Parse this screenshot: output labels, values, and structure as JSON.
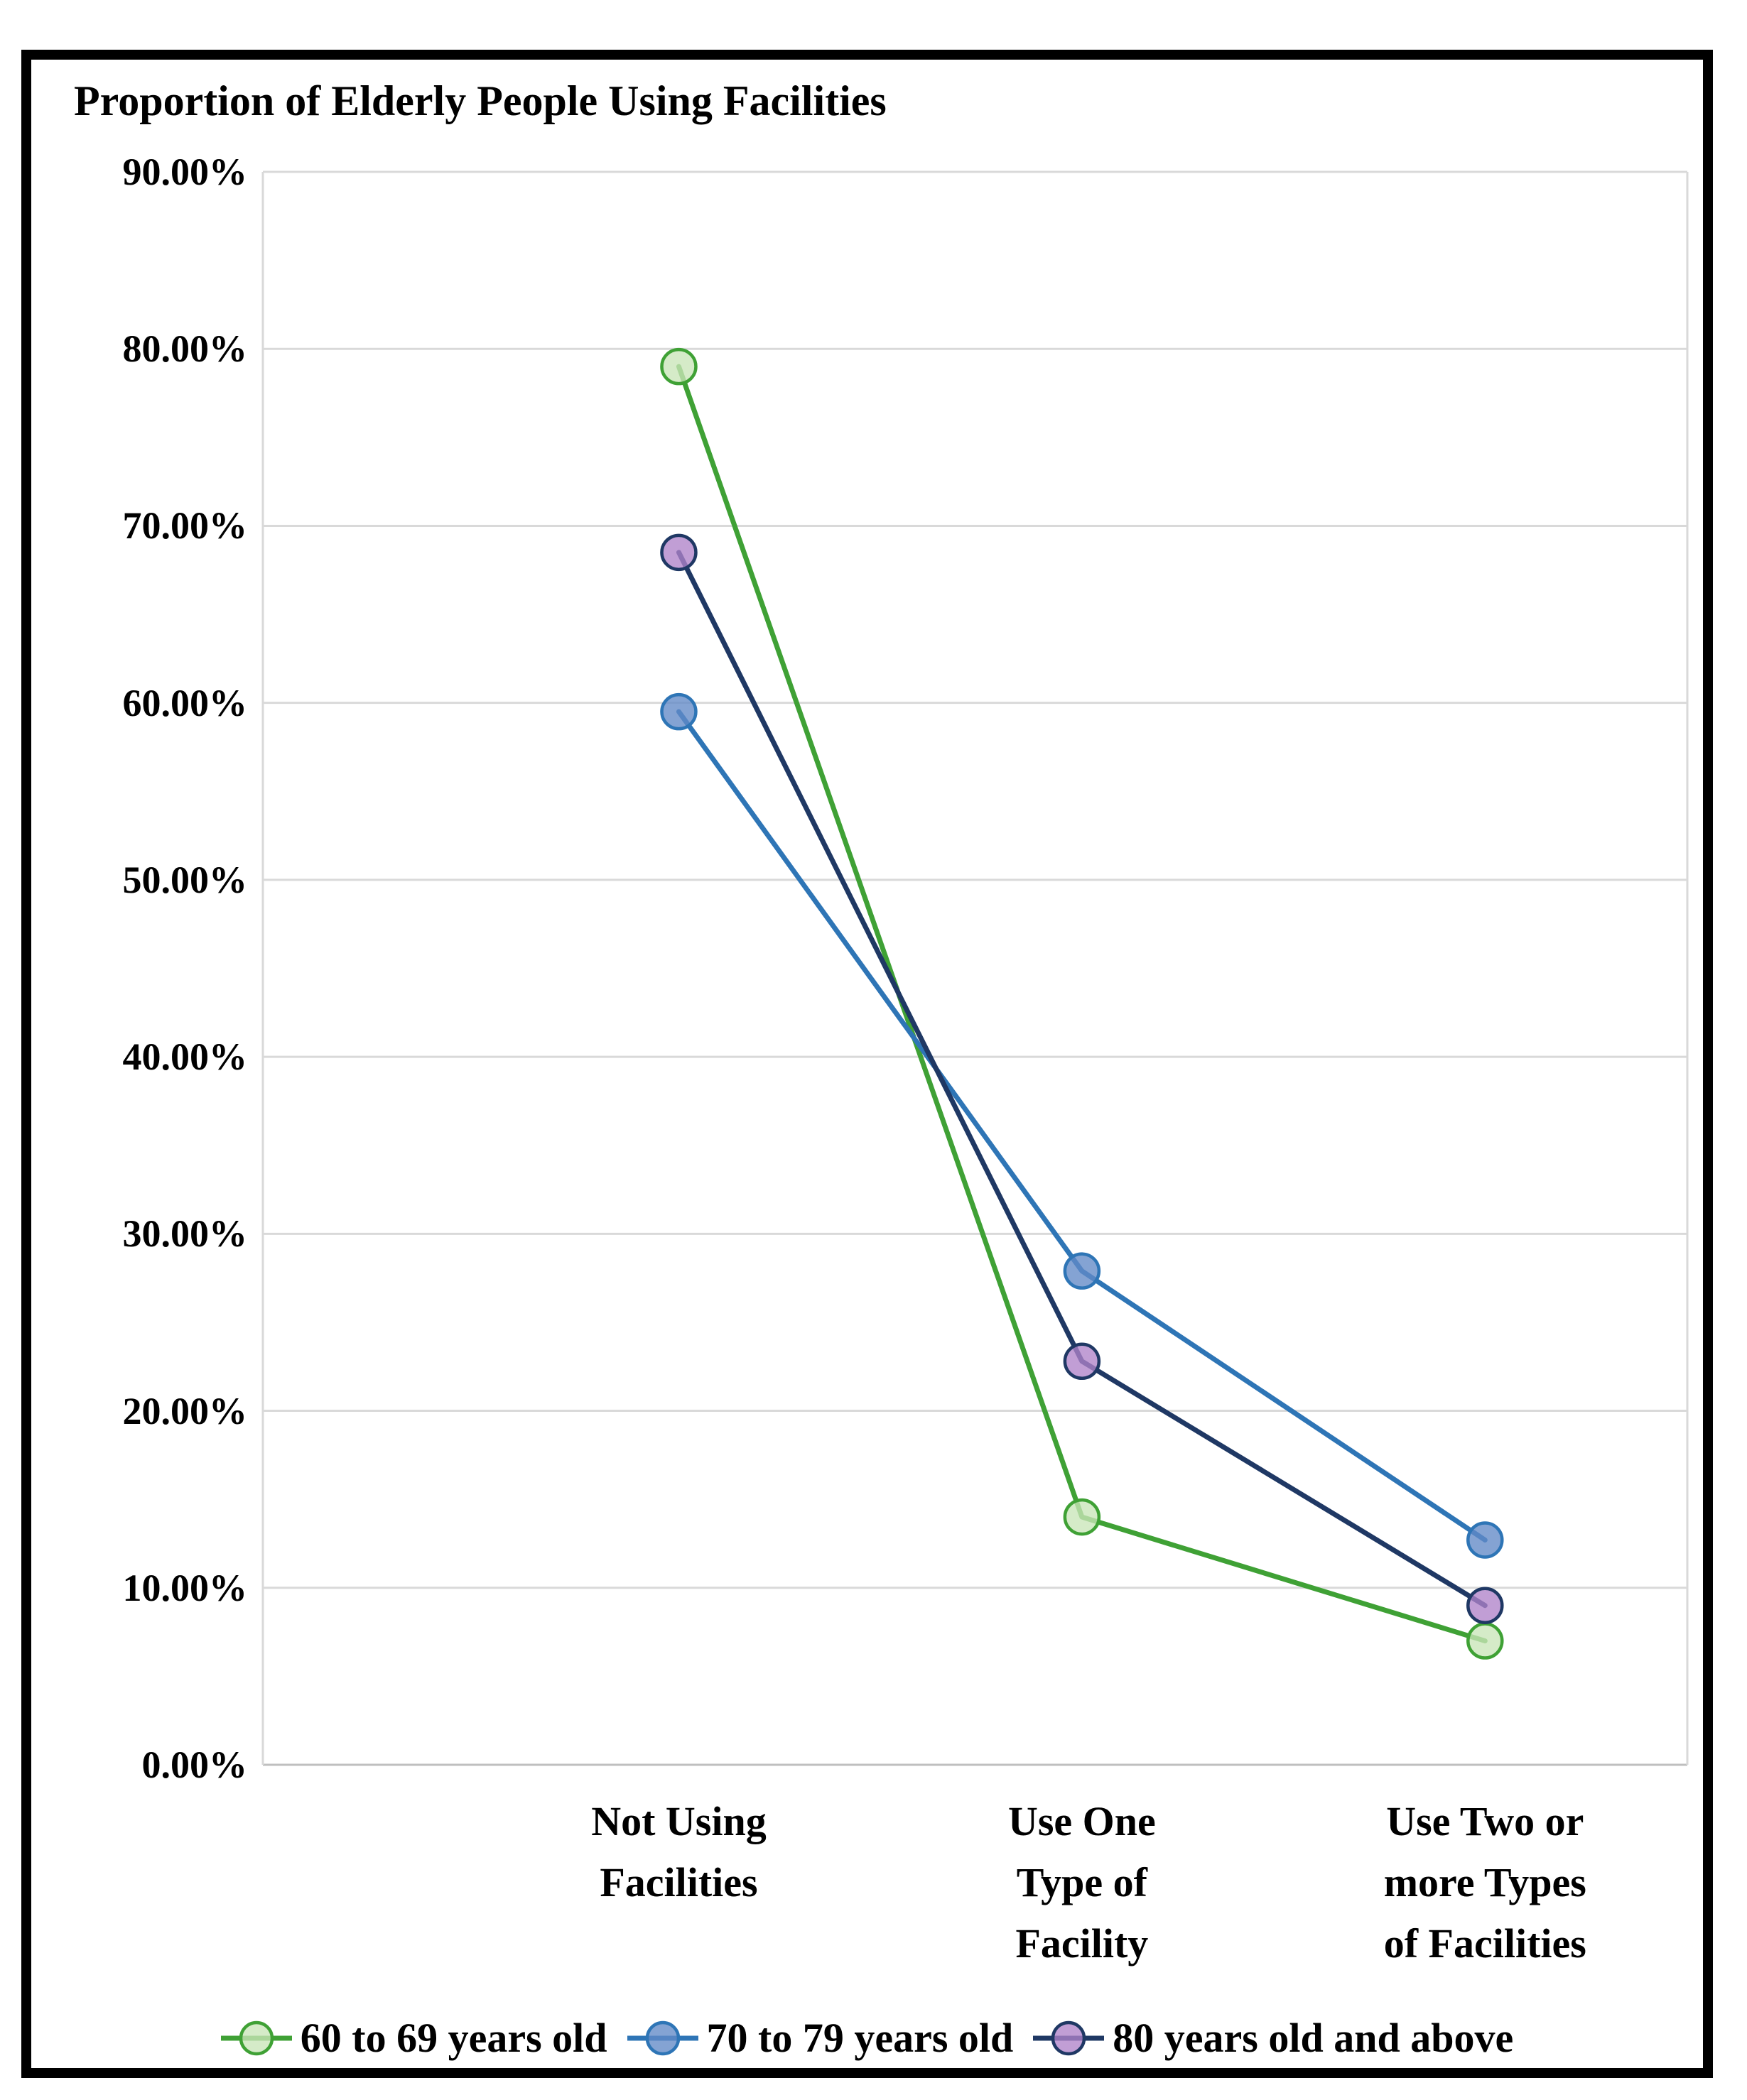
{
  "chart_data": {
    "type": "line",
    "title": "Proportion of Elderly People Using Facilities",
    "categories": [
      "Not Using\nFacilities",
      "Use One\nType of\nFacility",
      "Use Two or\nmore Types\nof Facilities"
    ],
    "series": [
      {
        "name": "60 to 69 years old",
        "values": [
          79.0,
          14.0,
          7.0
        ],
        "line_color": "#3FA135",
        "marker_fill": "#C9E5B8",
        "marker_border": "#3FA135"
      },
      {
        "name": "70 to 79 years old",
        "values": [
          59.5,
          27.9,
          12.7
        ],
        "line_color": "#2E75B6",
        "marker_fill": "#6189C7",
        "marker_border": "#2E75B6"
      },
      {
        "name": "80 years old and above",
        "values": [
          68.5,
          22.8,
          9.0
        ],
        "line_color": "#1F3864",
        "marker_fill": "#B083C9",
        "marker_border": "#1F3864"
      }
    ],
    "ylim": [
      0,
      90
    ],
    "ytick_step": 10,
    "ytick_labels": [
      "0.00%",
      "10.00%",
      "20.00%",
      "30.00%",
      "40.00%",
      "50.00%",
      "60.00%",
      "70.00%",
      "80.00%",
      "90.00%"
    ],
    "xlabel": "",
    "ylabel": "",
    "grid": true,
    "legend_position": "bottom"
  },
  "colors": {
    "background": "#FFFFFF",
    "frame": "#000000",
    "gridline": "#D9D9D9",
    "axis_line": "#BFBFBF",
    "text": "#000000"
  }
}
